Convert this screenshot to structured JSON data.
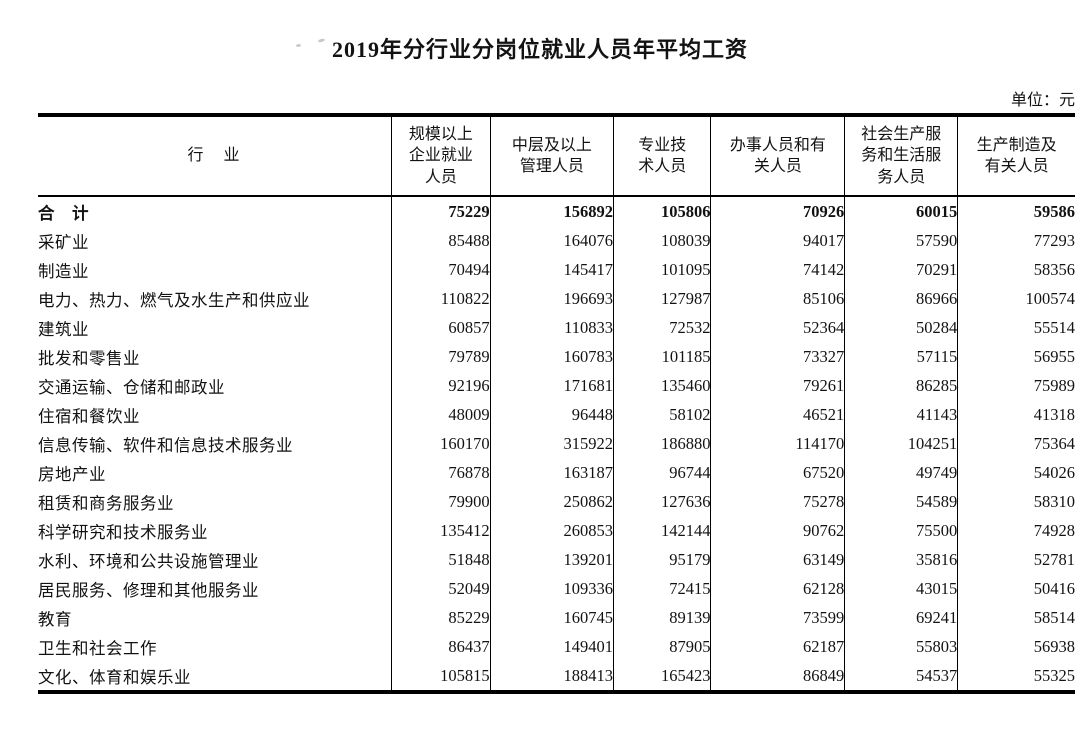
{
  "page": {
    "title": "2019年分行业分岗位就业人员年平均工资",
    "unit_label": "单位：元"
  },
  "table": {
    "columns": [
      {
        "label": "行　业"
      },
      {
        "label": "规模以上\n企业就业\n人员"
      },
      {
        "label": "中层及以上\n管理人员"
      },
      {
        "label": "专业技\n术人员"
      },
      {
        "label": "办事人员和有\n关人员"
      },
      {
        "label": "社会生产服\n务和生活服\n务人员"
      },
      {
        "label": "生产制造及\n有关人员"
      }
    ],
    "rows": [
      {
        "industry": "合　计",
        "bold": true,
        "values": [
          75229,
          156892,
          105806,
          70926,
          60015,
          59586
        ]
      },
      {
        "industry": "采矿业",
        "bold": false,
        "values": [
          85488,
          164076,
          108039,
          94017,
          57590,
          77293
        ]
      },
      {
        "industry": "制造业",
        "bold": false,
        "values": [
          70494,
          145417,
          101095,
          74142,
          70291,
          58356
        ]
      },
      {
        "industry": "电力、热力、燃气及水生产和供应业",
        "bold": false,
        "values": [
          110822,
          196693,
          127987,
          85106,
          86966,
          100574
        ]
      },
      {
        "industry": "建筑业",
        "bold": false,
        "values": [
          60857,
          110833,
          72532,
          52364,
          50284,
          55514
        ]
      },
      {
        "industry": "批发和零售业",
        "bold": false,
        "values": [
          79789,
          160783,
          101185,
          73327,
          57115,
          56955
        ]
      },
      {
        "industry": "交通运输、仓储和邮政业",
        "bold": false,
        "values": [
          92196,
          171681,
          135460,
          79261,
          86285,
          75989
        ]
      },
      {
        "industry": "住宿和餐饮业",
        "bold": false,
        "values": [
          48009,
          96448,
          58102,
          46521,
          41143,
          41318
        ]
      },
      {
        "industry": "信息传输、软件和信息技术服务业",
        "bold": false,
        "values": [
          160170,
          315922,
          186880,
          114170,
          104251,
          75364
        ]
      },
      {
        "industry": "房地产业",
        "bold": false,
        "values": [
          76878,
          163187,
          96744,
          67520,
          49749,
          54026
        ]
      },
      {
        "industry": "租赁和商务服务业",
        "bold": false,
        "values": [
          79900,
          250862,
          127636,
          75278,
          54589,
          58310
        ]
      },
      {
        "industry": "科学研究和技术服务业",
        "bold": false,
        "values": [
          135412,
          260853,
          142144,
          90762,
          75500,
          74928
        ]
      },
      {
        "industry": "水利、环境和公共设施管理业",
        "bold": false,
        "values": [
          51848,
          139201,
          95179,
          63149,
          35816,
          52781
        ]
      },
      {
        "industry": "居民服务、修理和其他服务业",
        "bold": false,
        "values": [
          52049,
          109336,
          72415,
          62128,
          43015,
          50416
        ]
      },
      {
        "industry": "教育",
        "bold": false,
        "values": [
          85229,
          160745,
          89139,
          73599,
          69241,
          58514
        ]
      },
      {
        "industry": "卫生和社会工作",
        "bold": false,
        "values": [
          86437,
          149401,
          87905,
          62187,
          55803,
          56938
        ]
      },
      {
        "industry": "文化、体育和娱乐业",
        "bold": false,
        "values": [
          105815,
          188413,
          165423,
          86849,
          54537,
          55325
        ]
      }
    ]
  }
}
